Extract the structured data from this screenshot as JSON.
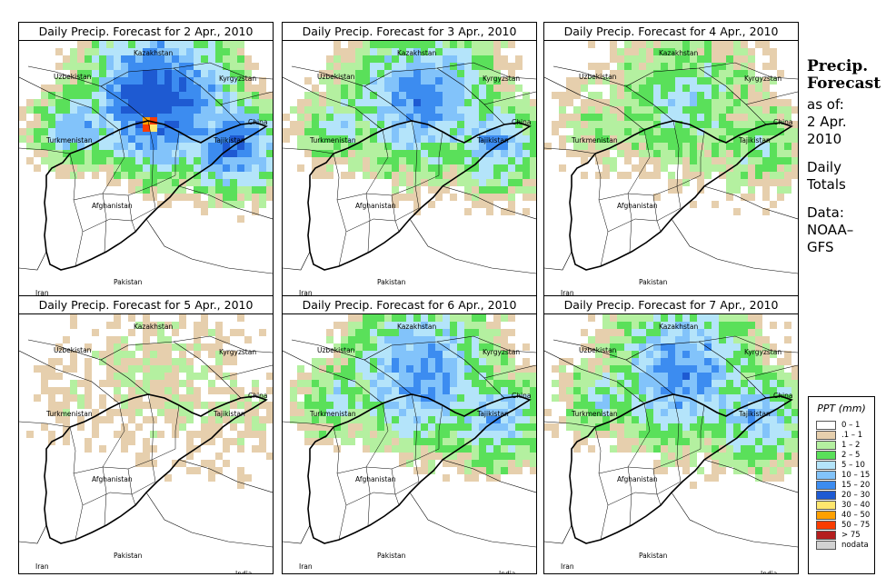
{
  "panels": [
    {
      "title": "Daily Precip. Forecast for  2 Apr., 2010",
      "intensity": 3
    },
    {
      "title": "Daily Precip. Forecast for  3 Apr., 2010",
      "intensity": 2
    },
    {
      "title": "Daily Precip. Forecast for  4 Apr., 2010",
      "intensity": 1
    },
    {
      "title": "Daily Precip. Forecast for  5 Apr., 2010",
      "intensity": 0
    },
    {
      "title": "Daily Precip. Forecast for  6 Apr., 2010",
      "intensity": 2
    },
    {
      "title": "Daily Precip. Forecast for  7 Apr., 2010",
      "intensity": 2
    }
  ],
  "map_labels": {
    "uzbekistan": "Uzbekistan",
    "kazakhstan": "Kazakhstan",
    "kyrgyzstan": "Kyrgyzstan",
    "china": "China",
    "turkmenistan": "Turkmenistan",
    "tajikistan": "Tajikistan",
    "afghanistan": "Afghanistan",
    "pakistan": "Pakistan",
    "iran": "Iran",
    "india": "India"
  },
  "side": {
    "title_line1": "Precip.",
    "title_line2": "Forecast",
    "asof": "as of:",
    "date_line1": "2 Apr.",
    "date_line2": "2010",
    "daily_line1": "Daily",
    "daily_line2": "Totals",
    "data_line1": "Data:",
    "data_line2": "NOAA–",
    "data_line3": "GFS"
  },
  "legend": {
    "title": "PPT (mm)",
    "items": [
      {
        "label": "0 – 1",
        "color": "#ffffff"
      },
      {
        "label": ".1 – 1",
        "color": "#e6cfad"
      },
      {
        "label": "1 – 2",
        "color": "#b4f0a0"
      },
      {
        "label": "2 – 5",
        "color": "#5ae05a"
      },
      {
        "label": "5 – 10",
        "color": "#b4e4fa"
      },
      {
        "label": "10 – 15",
        "color": "#82c3fa"
      },
      {
        "label": "15 – 20",
        "color": "#3c8cf0"
      },
      {
        "label": "20 – 30",
        "color": "#1e5ad2"
      },
      {
        "label": "30 – 40",
        "color": "#ffe66e"
      },
      {
        "label": "40 – 50",
        "color": "#ffa000"
      },
      {
        "label": "50 – 75",
        "color": "#fa3c00"
      },
      {
        "label": "> 75",
        "color": "#b41e1e"
      },
      {
        "label": "nodata",
        "color": "#d2d2d2"
      }
    ]
  }
}
